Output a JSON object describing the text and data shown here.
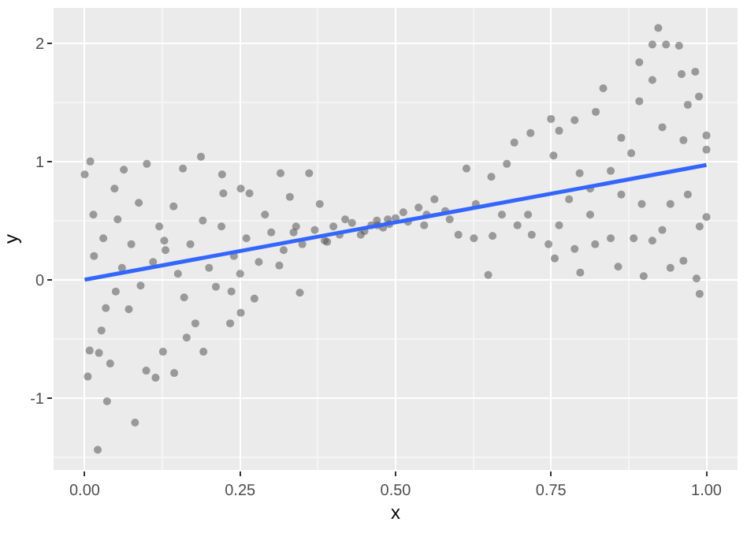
{
  "chart_data": {
    "type": "scatter",
    "xlabel": "x",
    "ylabel": "y",
    "xlim": [
      -0.05,
      1.05
    ],
    "ylim": [
      -1.61,
      2.3
    ],
    "xticks": [
      {
        "value": 0,
        "label": "0.00"
      },
      {
        "value": 0.25,
        "label": "0.25"
      },
      {
        "value": 0.5,
        "label": "0.50"
      },
      {
        "value": 0.75,
        "label": "0.75"
      },
      {
        "value": 1,
        "label": "1.00"
      }
    ],
    "yticks": [
      -1,
      0,
      1,
      2
    ],
    "grid": true,
    "series": [
      {
        "marker": "circle",
        "color": "#555555",
        "x": [
          0.021,
          0.036,
          0.081,
          0.009,
          0.0,
          0.005,
          0.063,
          0.1,
          0.187,
          0.099,
          0.114,
          0.144,
          0.191,
          0.164,
          0.126,
          0.041,
          0.023,
          0.008,
          0.071,
          0.034,
          0.027,
          0.053,
          0.048,
          0.087,
          0.128,
          0.143,
          0.158,
          0.221,
          0.223,
          0.251,
          0.236,
          0.234,
          0.251,
          0.178,
          0.211,
          0.265,
          0.273,
          0.315,
          0.33,
          0.361,
          0.346,
          0.313,
          0.336,
          0.378,
          0.386,
          0.419,
          0.461,
          0.444,
          0.015,
          0.03,
          0.06,
          0.075,
          0.09,
          0.11,
          0.13,
          0.15,
          0.17,
          0.2,
          0.22,
          0.24,
          0.26,
          0.28,
          0.3,
          0.32,
          0.34,
          0.35,
          0.37,
          0.39,
          0.4,
          0.41,
          0.43,
          0.45,
          0.47,
          0.48,
          0.49,
          0.5,
          0.52,
          0.55,
          0.58,
          0.014,
          0.05,
          0.12,
          0.16,
          0.19,
          0.25,
          0.29,
          0.9225,
          0.913,
          0.935,
          0.956,
          0.892,
          0.913,
          0.96,
          0.982,
          0.834,
          0.988,
          0.892,
          0.822,
          0.75,
          0.97,
          1.0,
          1.0,
          0.989,
          0.984,
          0.899,
          0.797,
          0.756,
          0.649,
          0.858,
          0.913,
          0.942,
          0.963,
          1.0,
          0.989,
          0.614,
          0.691,
          0.717,
          0.763,
          0.788,
          0.601,
          0.626,
          0.656,
          0.719,
          0.746,
          0.788,
          0.821,
          0.846,
          0.883,
          0.929,
          0.942,
          0.97,
          0.863,
          0.879,
          0.929,
          0.963,
          0.846,
          0.796,
          0.754,
          0.679,
          0.654,
          0.5625,
          0.537,
          0.5125,
          0.4875,
          0.471,
          0.546,
          0.587,
          0.629,
          0.671,
          0.713,
          0.779,
          0.813,
          0.863,
          0.896,
          0.813,
          0.763,
          0.696
        ],
        "values": [
          -1.44,
          -1.03,
          -1.21,
          1.0,
          0.89,
          -0.82,
          0.93,
          0.98,
          1.04,
          -0.77,
          -0.83,
          -0.79,
          -0.61,
          -0.49,
          -0.61,
          -0.71,
          -0.62,
          -0.6,
          -0.25,
          -0.24,
          -0.43,
          0.51,
          0.77,
          0.65,
          0.33,
          0.62,
          0.94,
          0.89,
          0.73,
          0.77,
          -0.1,
          -0.37,
          -0.28,
          -0.37,
          -0.06,
          0.73,
          -0.16,
          0.9,
          0.7,
          0.9,
          -0.11,
          0.12,
          0.4,
          0.64,
          0.33,
          0.51,
          0.46,
          0.38,
          0.2,
          0.35,
          0.1,
          0.3,
          -0.05,
          0.15,
          0.25,
          0.05,
          0.3,
          0.1,
          0.45,
          0.2,
          0.35,
          0.15,
          0.4,
          0.25,
          0.45,
          0.3,
          0.42,
          0.32,
          0.45,
          0.38,
          0.48,
          0.41,
          0.5,
          0.44,
          0.47,
          0.52,
          0.49,
          0.55,
          0.58,
          0.55,
          -0.1,
          0.45,
          -0.15,
          0.5,
          0.05,
          0.55,
          2.13,
          1.99,
          1.99,
          1.98,
          1.84,
          1.69,
          1.74,
          1.76,
          1.62,
          1.55,
          1.51,
          1.42,
          1.36,
          1.48,
          1.22,
          1.1,
          -0.12,
          0.01,
          0.03,
          0.06,
          0.18,
          0.04,
          0.11,
          0.33,
          0.1,
          0.16,
          0.53,
          0.45,
          0.94,
          1.16,
          1.24,
          1.26,
          1.35,
          0.38,
          0.35,
          0.37,
          0.38,
          0.3,
          0.26,
          0.3,
          0.35,
          0.35,
          0.42,
          0.64,
          0.72,
          1.2,
          1.07,
          1.29,
          1.18,
          0.92,
          0.9,
          1.05,
          0.98,
          0.87,
          0.68,
          0.61,
          0.57,
          0.51,
          0.46,
          0.46,
          0.51,
          0.64,
          0.55,
          0.55,
          0.68,
          0.77,
          0.72,
          0.64,
          0.55,
          0.46,
          0.46
        ]
      },
      {
        "type": "line",
        "color": "#3366ff",
        "x": [
          0,
          1
        ],
        "values": [
          0.0,
          0.97
        ]
      }
    ]
  }
}
